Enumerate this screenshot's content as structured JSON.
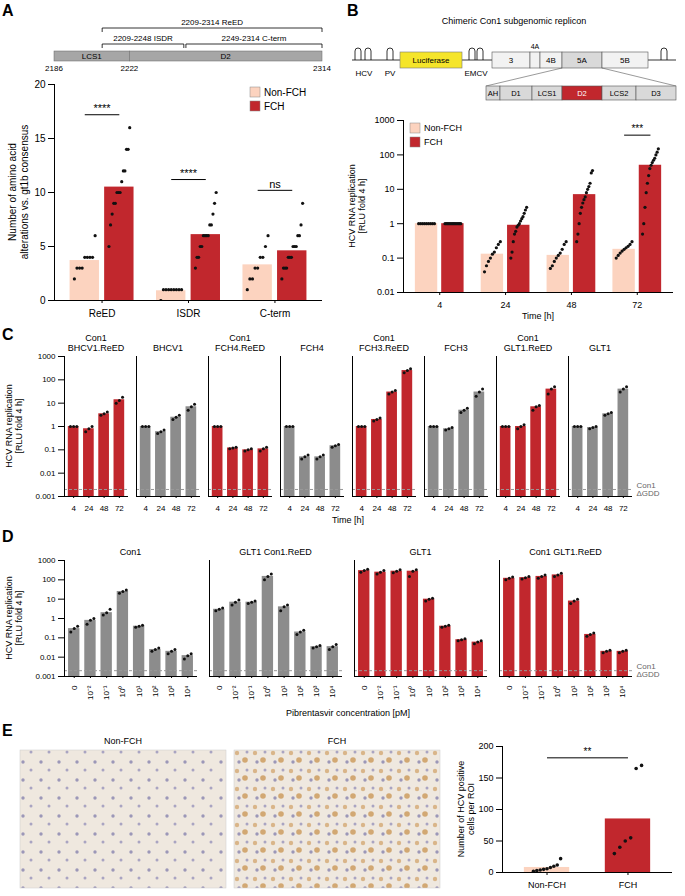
{
  "chart_data": [
    {
      "panel": "A",
      "type": "bar",
      "categories": [
        "ReED",
        "ISDR",
        "C-term"
      ],
      "ylabel": "Number of amino acid alterations vs. gt1b consensus",
      "ylim": [
        0,
        20
      ],
      "yticks": [
        0,
        5,
        10,
        15,
        20
      ],
      "legend": "top-right",
      "series": [
        {
          "name": "Non-FCH",
          "color": "#fcd3bf",
          "values": [
            3.7,
            0.9,
            3.3
          ],
          "points": [
            [
              2,
              3,
              3,
              3,
              4,
              4,
              4,
              4,
              6
            ],
            [
              0,
              1,
              1,
              1,
              1,
              1,
              1,
              1,
              1
            ],
            [
              1,
              2,
              2,
              3,
              3,
              4,
              4,
              5,
              6
            ]
          ]
        },
        {
          "name": "FCH",
          "color": "#c1272d",
          "values": [
            10.5,
            6.1,
            4.6
          ],
          "points": [
            [
              5,
              7,
              8,
              9,
              9,
              10,
              10,
              10,
              11,
              12,
              12,
              14,
              14,
              16
            ],
            [
              3,
              4,
              4,
              5,
              5,
              6,
              6,
              6,
              6,
              7,
              7,
              8,
              9,
              10
            ],
            [
              2,
              3,
              3,
              3,
              4,
              4,
              4,
              5,
              5,
              5,
              6,
              6,
              7,
              9
            ]
          ]
        }
      ],
      "significance": [
        "****",
        "****",
        "ns"
      ]
    },
    {
      "panel": "B",
      "type": "bar",
      "categories": [
        "4",
        "24",
        "48",
        "72"
      ],
      "xlabel": "Time [h]",
      "ylabel": "HCV RNA replication [RLU fold 4 h]",
      "log": "y",
      "ylim": [
        0.01,
        1000
      ],
      "yticks": [
        0.01,
        0.1,
        1,
        10,
        100,
        1000
      ],
      "legend": "top-left",
      "series": [
        {
          "name": "Non-FCH",
          "color": "#fcd3bf",
          "values": [
            1,
            0.13,
            0.12,
            0.18
          ],
          "points": [
            [
              1,
              1,
              1,
              1,
              1,
              1,
              1,
              1,
              1
            ],
            [
              0.04,
              0.06,
              0.08,
              0.1,
              0.13,
              0.15,
              0.2,
              0.25,
              0.3
            ],
            [
              0.05,
              0.06,
              0.08,
              0.1,
              0.12,
              0.14,
              0.18,
              0.25,
              0.3
            ],
            [
              0.1,
              0.12,
              0.14,
              0.16,
              0.18,
              0.2,
              0.22,
              0.25,
              0.3
            ]
          ]
        },
        {
          "name": "FCH",
          "color": "#c1272d",
          "values": [
            1,
            0.9,
            7,
            50
          ],
          "points": [
            [
              1,
              1,
              1,
              1,
              1,
              1,
              1,
              1,
              1,
              1,
              1,
              1,
              1,
              1
            ],
            [
              0.1,
              0.15,
              0.3,
              0.5,
              0.6,
              0.8,
              0.9,
              1,
              1.2,
              1.4,
              1.6,
              2,
              2.5,
              3
            ],
            [
              0.3,
              0.5,
              1,
              2,
              3,
              4,
              5,
              6,
              8,
              10,
              12,
              15,
              30,
              35
            ],
            [
              0.5,
              1,
              3,
              8,
              15,
              25,
              40,
              50,
              60,
              70,
              80,
              100,
              120,
              150
            ]
          ]
        }
      ],
      "significance": [
        null,
        null,
        null,
        "***"
      ]
    },
    {
      "panel": "C",
      "type": "bar",
      "categories": [
        "4",
        "24",
        "48",
        "72"
      ],
      "xlabel": "Time [h]",
      "ylabel": "HCV RNA replication [RLU fold 4 h]",
      "log": "y",
      "ylim": [
        0.001,
        1000
      ],
      "yticks": [
        0.001,
        0.01,
        0.1,
        1,
        10,
        100,
        1000
      ],
      "reference": {
        "label": "Con1 ΔGDD",
        "value": 0.002
      },
      "subplots": [
        {
          "title": "Con1 BHCV1.ReED",
          "color": "#c1272d",
          "values": [
            1,
            0.8,
            3.5,
            14
          ],
          "points": [
            [
              1,
              1,
              1
            ],
            [
              0.6,
              0.8,
              1
            ],
            [
              3,
              3.5,
              4.2
            ],
            [
              10,
              13,
              18
            ]
          ]
        },
        {
          "title": "BHCV1",
          "color": "#8c8c8c",
          "values": [
            1,
            0.6,
            2.5,
            7
          ],
          "points": [
            [
              1,
              1,
              1
            ],
            [
              0.5,
              0.6,
              0.7
            ],
            [
              2,
              2.5,
              3
            ],
            [
              5,
              7,
              9
            ]
          ]
        },
        {
          "title": "Con1 FCH4.ReED",
          "color": "#c1272d",
          "values": [
            1,
            0.12,
            0.1,
            0.11
          ],
          "points": [
            [
              1,
              1,
              1
            ],
            [
              0.11,
              0.12,
              0.13
            ],
            [
              0.09,
              0.1,
              0.11
            ],
            [
              0.09,
              0.11,
              0.13
            ]
          ]
        },
        {
          "title": "FCH4",
          "color": "#8c8c8c",
          "values": [
            1,
            0.05,
            0.05,
            0.15
          ],
          "points": [
            [
              1,
              1,
              1
            ],
            [
              0.04,
              0.05,
              0.06
            ],
            [
              0.04,
              0.05,
              0.06
            ],
            [
              0.13,
              0.15,
              0.17
            ]
          ]
        },
        {
          "title": "Con1 FCH3.ReED",
          "color": "#c1272d",
          "values": [
            1,
            2,
            30,
            250
          ],
          "points": [
            [
              1,
              1,
              1
            ],
            [
              1.7,
              2,
              2.3
            ],
            [
              25,
              30,
              35
            ],
            [
              200,
              250,
              300
            ]
          ]
        },
        {
          "title": "FCH3",
          "color": "#8c8c8c",
          "values": [
            1,
            0.8,
            5,
            30
          ],
          "points": [
            [
              1,
              1,
              1
            ],
            [
              0.7,
              0.8,
              0.9
            ],
            [
              4,
              5,
              6
            ],
            [
              20,
              30,
              40
            ]
          ]
        },
        {
          "title": "Con1 GLT1.ReED",
          "color": "#c1272d",
          "values": [
            1,
            1,
            7,
            40
          ],
          "points": [
            [
              1,
              1,
              1
            ],
            [
              0.8,
              1,
              1.2
            ],
            [
              5,
              7,
              8
            ],
            [
              25,
              40,
              50
            ]
          ]
        },
        {
          "title": "GLT1",
          "color": "#8c8c8c",
          "values": [
            1,
            0.9,
            3.5,
            40
          ],
          "points": [
            [
              1,
              1,
              1
            ],
            [
              0.8,
              0.9,
              1
            ],
            [
              3,
              3.5,
              4
            ],
            [
              30,
              40,
              50
            ]
          ]
        }
      ]
    },
    {
      "panel": "D",
      "type": "bar",
      "categories": [
        "0",
        "10⁻²",
        "10⁻¹",
        "10⁰",
        "10¹",
        "10²",
        "10³",
        "10⁴"
      ],
      "xlabel": "Pibrentasvir concentration [pM]",
      "ylabel": "HCV RNA replication [RLU fold 4 h]",
      "log": "y",
      "ylim": [
        0.001,
        1000
      ],
      "yticks": [
        0.001,
        0.01,
        0.1,
        1,
        10,
        100,
        1000
      ],
      "reference": {
        "label": "Con1 ΔGDD",
        "value": 0.002
      },
      "subplots": [
        {
          "title": "Con1",
          "color": "#8c8c8c",
          "values": [
            0.3,
            0.8,
            2,
            25,
            0.4,
            0.025,
            0.02,
            0.012
          ],
          "points": [
            [
              0.2,
              0.3,
              0.4
            ],
            [
              0.5,
              0.8,
              1
            ],
            [
              1.5,
              2,
              3
            ],
            [
              20,
              25,
              30
            ],
            [
              0.35,
              0.4,
              0.45
            ],
            [
              0.02,
              0.025,
              0.03
            ],
            [
              0.015,
              0.02,
              0.025
            ],
            [
              0.008,
              0.012,
              0.015
            ]
          ]
        },
        {
          "title": "GLT1 Con1.ReED",
          "color": "#8c8c8c",
          "values": [
            3,
            7,
            7,
            150,
            4,
            0.2,
            0.035,
            0.035
          ],
          "points": [
            [
              2.5,
              3,
              3.5
            ],
            [
              5,
              7,
              9
            ],
            [
              6,
              7,
              8
            ],
            [
              100,
              150,
              200
            ],
            [
              2.5,
              4,
              5
            ],
            [
              0.15,
              0.2,
              0.25
            ],
            [
              0.03,
              0.035,
              0.04
            ],
            [
              0.025,
              0.035,
              0.045
            ]
          ]
        },
        {
          "title": "GLT1",
          "color": "#c1272d",
          "values": [
            300,
            250,
            280,
            280,
            10,
            0.4,
            0.08,
            0.06
          ],
          "points": [
            [
              250,
              300,
              350
            ],
            [
              200,
              250,
              300
            ],
            [
              230,
              280,
              330
            ],
            [
              150,
              280,
              330
            ],
            [
              8,
              10,
              11
            ],
            [
              0.35,
              0.4,
              0.45
            ],
            [
              0.07,
              0.08,
              0.09
            ],
            [
              0.05,
              0.06,
              0.07
            ]
          ]
        },
        {
          "title": "Con1 GLT1.ReED",
          "color": "#c1272d",
          "values": [
            120,
            130,
            150,
            180,
            8,
            0.15,
            0.02,
            0.02
          ],
          "points": [
            [
              100,
              120,
              140
            ],
            [
              110,
              130,
              150
            ],
            [
              120,
              150,
              180
            ],
            [
              150,
              180,
              220
            ],
            [
              6,
              8,
              10
            ],
            [
              0.12,
              0.15,
              0.18
            ],
            [
              0.017,
              0.02,
              0.023
            ],
            [
              0.017,
              0.02,
              0.023
            ]
          ]
        }
      ]
    },
    {
      "panel": "E",
      "type": "bar",
      "categories": [
        "Non-FCH",
        "FCH"
      ],
      "ylabel": "Number of HCV positive cells per ROI",
      "ylim": [
        0,
        200
      ],
      "yticks": [
        0,
        50,
        100,
        150,
        200
      ],
      "colors": [
        "#fcd3bf",
        "#c1272d"
      ],
      "values": [
        8,
        85
      ],
      "points": [
        [
          2,
          3,
          4,
          5,
          6,
          8,
          10,
          12,
          22
        ],
        [
          30,
          40,
          50,
          55,
          165,
          170
        ]
      ],
      "significance": "**",
      "images": [
        "Non-FCH",
        "FCH"
      ]
    }
  ],
  "diagrams": {
    "A": {
      "domains": [
        {
          "label": "LCS1",
          "start": 2186,
          "end": 2222
        },
        {
          "label": "D2",
          "start": 2222,
          "end": 2314
        }
      ],
      "ticks": [
        2186,
        2222,
        2314
      ],
      "regions": [
        {
          "text": "2209-2314 ReED",
          "start": 2209,
          "end": 2314
        },
        {
          "text": "2209-2248 ISDR",
          "start": 2209,
          "end": 2248
        },
        {
          "text": "2249-2314 C-term",
          "start": 2249,
          "end": 2314
        }
      ]
    },
    "B": {
      "title": "Chimeric Con1 subgenomic replicon",
      "utr5": "HCV",
      "ires1": "PV",
      "reporter": "Luciferase",
      "ires2": "EMCV",
      "proteins": [
        "3",
        "4A",
        "4B",
        "5A",
        "5B"
      ],
      "zoom": "5A",
      "ns5a": [
        "AH",
        "D1",
        "LCS1",
        "D2",
        "LCS2",
        "D3"
      ],
      "highlight": "D2"
    }
  }
}
